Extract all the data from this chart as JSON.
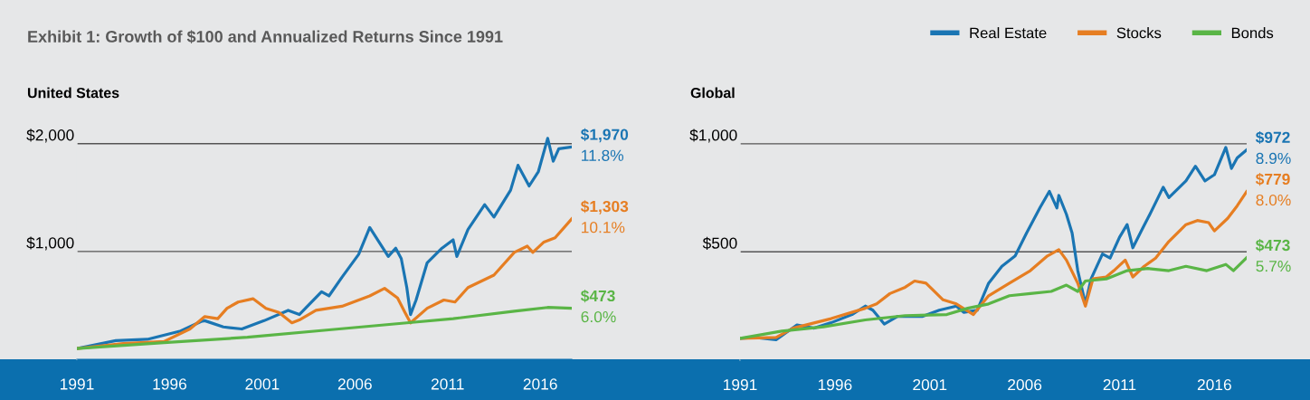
{
  "chart_data": [
    {
      "type": "line",
      "title": "Exhibit 1: Growth of $100 and Annualized Returns Since 1991",
      "subtitle": "United States",
      "xlim": [
        1991,
        2017.7
      ],
      "xticks": [
        1991,
        1996,
        2001,
        2006,
        2011,
        2016
      ],
      "ylim": [
        0,
        2200
      ],
      "yticks": [
        {
          "value": 1000,
          "label": "$1,000"
        },
        {
          "value": 2000,
          "label": "$2,000"
        }
      ],
      "grid": "y",
      "series": [
        {
          "color": "#1a75b3",
          "x": [
            1991.0,
            1993.1,
            1994.8,
            1996.6,
            1997.7,
            1997.9,
            1998.9,
            1999.9,
            2001.1,
            2002.4,
            2003.0,
            2004.2,
            2004.6,
            2005.3,
            2006.2,
            2006.8,
            2007.3,
            2007.8,
            2008.2,
            2008.5,
            2008.8,
            2009.0,
            2009.3,
            2009.9,
            2010.7,
            2011.3,
            2011.5,
            2012.1,
            2013.0,
            2013.5,
            2014.4,
            2014.8,
            2015.4,
            2015.9,
            2016.4,
            2016.7,
            2017.0,
            2017.7
          ],
          "values": [
            100,
            173,
            185,
            262,
            350,
            358,
            300,
            281,
            358,
            454,
            415,
            627,
            588,
            761,
            973,
            1223,
            1088,
            954,
            1031,
            934,
            665,
            415,
            550,
            896,
            1031,
            1108,
            954,
            1204,
            1435,
            1319,
            1569,
            1800,
            1608,
            1742,
            2050,
            1838,
            1954,
            1970
          ],
          "value_labels": [
            null,
            null,
            null,
            null,
            null,
            null,
            null,
            null,
            null,
            null,
            null,
            null,
            null,
            null,
            null,
            null,
            null,
            null,
            null,
            null,
            null,
            null,
            null,
            null,
            null,
            null,
            null,
            null,
            null,
            null,
            null,
            null,
            null,
            null,
            null,
            null,
            null,
            "$1,970\n11.8%"
          ]
        },
        {
          "color": "#e67e22",
          "x": [
            1991.0,
            1993.5,
            1995.7,
            1997.1,
            1997.9,
            1998.6,
            1999.1,
            1999.7,
            2000.5,
            2001.2,
            2001.9,
            2002.6,
            2003.0,
            2003.9,
            2005.3,
            2006.8,
            2007.6,
            2008.3,
            2008.7,
            2009.0,
            2009.9,
            2010.8,
            2011.4,
            2012.1,
            2013.5,
            2014.6,
            2015.3,
            2015.6,
            2016.2,
            2016.8,
            2017.7
          ],
          "values": [
            100,
            146,
            165,
            281,
            396,
            377,
            473,
            531,
            562,
            473,
            435,
            338,
            365,
            454,
            492,
            588,
            658,
            569,
            435,
            338,
            473,
            550,
            531,
            665,
            781,
            992,
            1050,
            992,
            1088,
            1127,
            1303
          ],
          "value_labels": [
            null,
            null,
            null,
            null,
            null,
            null,
            null,
            null,
            null,
            null,
            null,
            null,
            null,
            null,
            null,
            null,
            null,
            null,
            null,
            null,
            null,
            null,
            null,
            null,
            null,
            null,
            null,
            null,
            null,
            null,
            "$1,303\n10.1%"
          ]
        },
        {
          "color": "#5ab546",
          "x": [
            1991.0,
            1995.7,
            2000.2,
            2004.6,
            2008.8,
            2011.3,
            2014.6,
            2016.4,
            2017.7
          ],
          "values": [
            100,
            154,
            204,
            273,
            338,
            377,
            446,
            481,
            473
          ],
          "value_labels": [
            null,
            null,
            null,
            null,
            null,
            null,
            null,
            null,
            "$473\n6.0%"
          ]
        }
      ]
    },
    {
      "type": "line",
      "subtitle": "Global",
      "xlim": [
        1991,
        2017.7
      ],
      "xticks": [
        1991,
        1996,
        2001,
        2006,
        2011,
        2016
      ],
      "ylim": [
        0,
        1100
      ],
      "yticks": [
        {
          "value": 500,
          "label": "$500"
        },
        {
          "value": 1000,
          "label": "$1,000"
        }
      ],
      "grid": "y",
      "legend": "top right",
      "series": [
        {
          "name": "Real Estate",
          "color": "#1a75b3",
          "x": [
            1991.0,
            1991.8,
            1992.9,
            1994.0,
            1994.9,
            1995.8,
            1996.9,
            1997.6,
            1998.0,
            1998.6,
            1999.3,
            2000.6,
            2001.5,
            2002.4,
            2002.8,
            2003.5,
            2004.1,
            2004.8,
            2005.5,
            2006.1,
            2006.8,
            2007.3,
            2007.7,
            2007.8,
            2008.2,
            2008.5,
            2008.8,
            2009.0,
            2009.2,
            2009.5,
            2010.1,
            2010.5,
            2011.0,
            2011.4,
            2011.7,
            2012.2,
            2012.6,
            2013.3,
            2013.6,
            2014.5,
            2015.0,
            2015.5,
            2016.0,
            2016.6,
            2016.9,
            2017.2,
            2017.7
          ],
          "values": [
            100,
            104,
            93,
            162,
            147,
            172,
            210,
            249,
            230,
            166,
            201,
            201,
            230,
            249,
            220,
            230,
            355,
            433,
            481,
            587,
            703,
            780,
            703,
            761,
            674,
            587,
            413,
            336,
            259,
            375,
            490,
            471,
            568,
            626,
            519,
            606,
            674,
            799,
            751,
            828,
            896,
            828,
            857,
            983,
            886,
            935,
            972
          ],
          "value_labels": [
            null,
            null,
            null,
            null,
            null,
            null,
            null,
            null,
            null,
            null,
            null,
            null,
            null,
            null,
            null,
            null,
            null,
            null,
            null,
            null,
            null,
            null,
            null,
            null,
            null,
            null,
            null,
            null,
            null,
            null,
            null,
            null,
            null,
            null,
            null,
            null,
            null,
            null,
            null,
            null,
            null,
            null,
            null,
            null,
            null,
            null,
            "$972\n8.9%"
          ]
        },
        {
          "name": "Stocks",
          "color": "#e67e22",
          "x": [
            1991.0,
            1992.9,
            1993.8,
            1995.8,
            1997.6,
            1998.2,
            1998.9,
            1999.7,
            2000.2,
            2000.8,
            2001.7,
            2002.4,
            2003.3,
            2004.1,
            2005.2,
            2006.3,
            2007.2,
            2007.8,
            2008.2,
            2008.8,
            2009.2,
            2009.6,
            2010.3,
            2010.7,
            2011.3,
            2011.7,
            2012.3,
            2012.9,
            2013.6,
            2014.5,
            2015.1,
            2015.7,
            2016.0,
            2016.7,
            2017.2,
            2017.7
          ],
          "values": [
            100,
            104,
            147,
            191,
            239,
            259,
            307,
            336,
            365,
            355,
            278,
            259,
            210,
            297,
            355,
            413,
            481,
            510,
            462,
            355,
            249,
            375,
            384,
            413,
            462,
            384,
            433,
            471,
            548,
            626,
            645,
            635,
            597,
            655,
            713,
            779
          ],
          "value_labels": [
            null,
            null,
            null,
            null,
            null,
            null,
            null,
            null,
            null,
            null,
            null,
            null,
            null,
            null,
            null,
            null,
            null,
            null,
            null,
            null,
            null,
            null,
            null,
            null,
            null,
            null,
            null,
            null,
            null,
            null,
            null,
            null,
            null,
            null,
            null,
            "$779\n8.0%"
          ]
        },
        {
          "name": "Bonds",
          "color": "#5ab546",
          "x": [
            1991.0,
            1993.2,
            1995.4,
            1997.6,
            1999.7,
            2001.9,
            2003.0,
            2004.1,
            2005.2,
            2006.3,
            2007.4,
            2008.2,
            2008.8,
            2009.2,
            2010.3,
            2011.4,
            2012.5,
            2013.6,
            2014.5,
            2015.6,
            2016.6,
            2017.0,
            2017.7
          ],
          "values": [
            100,
            133,
            153,
            185,
            205,
            210,
            239,
            259,
            297,
            307,
            317,
            346,
            317,
            365,
            375,
            413,
            423,
            413,
            433,
            413,
            442,
            413,
            473
          ],
          "value_labels": [
            null,
            null,
            null,
            null,
            null,
            null,
            null,
            null,
            null,
            null,
            null,
            null,
            null,
            null,
            null,
            null,
            null,
            null,
            null,
            null,
            null,
            null,
            "$473\n5.7%"
          ]
        }
      ]
    }
  ]
}
